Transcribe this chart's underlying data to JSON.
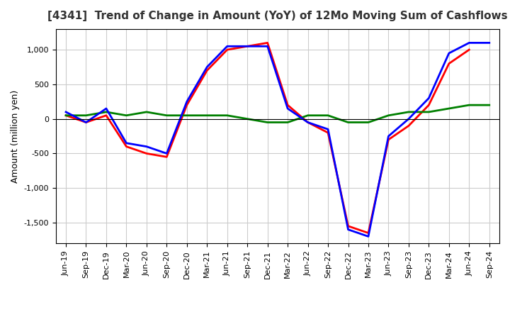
{
  "title": "[4341]  Trend of Change in Amount (YoY) of 12Mo Moving Sum of Cashflows",
  "ylabel": "Amount (million yen)",
  "x_labels": [
    "Jun-19",
    "Sep-19",
    "Dec-19",
    "Mar-20",
    "Jun-20",
    "Sep-20",
    "Dec-20",
    "Mar-21",
    "Jun-21",
    "Sep-21",
    "Dec-21",
    "Mar-22",
    "Jun-22",
    "Sep-22",
    "Dec-22",
    "Mar-23",
    "Jun-23",
    "Sep-23",
    "Dec-23",
    "Mar-24",
    "Jun-24",
    "Sep-24"
  ],
  "operating": [
    50,
    -50,
    50,
    -400,
    -500,
    -550,
    200,
    700,
    1000,
    1050,
    1100,
    200,
    -50,
    -200,
    -1550,
    -1650,
    -300,
    -100,
    200,
    800,
    1000,
    null
  ],
  "investing": [
    50,
    50,
    100,
    50,
    100,
    50,
    50,
    50,
    50,
    0,
    -50,
    -50,
    50,
    50,
    -50,
    -50,
    50,
    100,
    100,
    150,
    200,
    200
  ],
  "free": [
    100,
    -50,
    150,
    -350,
    -400,
    -500,
    250,
    750,
    1050,
    1050,
    1050,
    150,
    -50,
    -150,
    -1600,
    -1700,
    -250,
    0,
    300,
    950,
    1100,
    1100
  ],
  "ylim": [
    -1800,
    1300
  ],
  "yticks": [
    -1500,
    -1000,
    -500,
    0,
    500,
    1000
  ],
  "operating_color": "#ff0000",
  "investing_color": "#008000",
  "free_color": "#0000ff",
  "bg_color": "#ffffff",
  "grid_color": "#cccccc",
  "title_color": "#333333"
}
